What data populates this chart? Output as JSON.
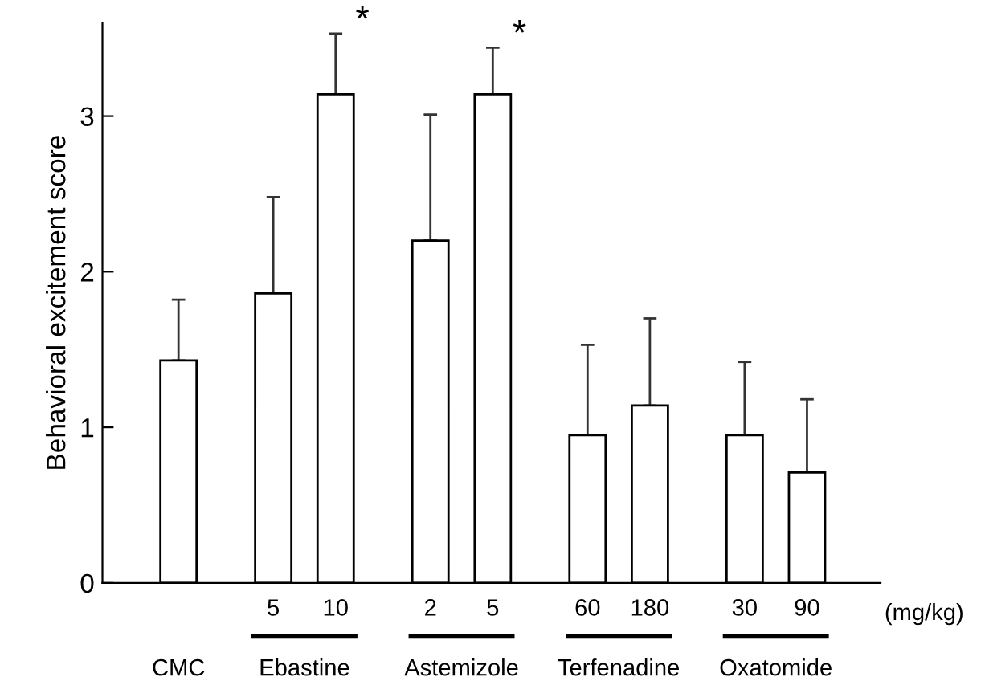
{
  "chart_data": {
    "type": "bar",
    "ylabel": "Behavioral excitement score",
    "xlabel": "(mg/kg)",
    "categories": [
      null,
      "5",
      "10",
      "2",
      "5",
      "60",
      "180",
      "30",
      "90"
    ],
    "values": [
      1.43,
      1.86,
      3.14,
      2.2,
      3.14,
      0.95,
      1.14,
      0.95,
      0.71
    ],
    "errors": [
      [
        1.43,
        1.82
      ],
      [
        1.86,
        2.48
      ],
      [
        3.14,
        3.53
      ],
      [
        2.2,
        3.01
      ],
      [
        3.14,
        3.44
      ],
      [
        0.95,
        1.53
      ],
      [
        1.14,
        1.7
      ],
      [
        0.95,
        1.42
      ],
      [
        0.71,
        1.18
      ]
    ],
    "color": "#ffffff",
    "ylim": [
      0,
      3.6
    ],
    "yticks": [
      0,
      1,
      2,
      3
    ],
    "grid": false,
    "annotations": [
      "CMC",
      "Ebastine",
      "Astemizole",
      "Terfenadine",
      "Oxatomide",
      "*",
      "*"
    ]
  }
}
